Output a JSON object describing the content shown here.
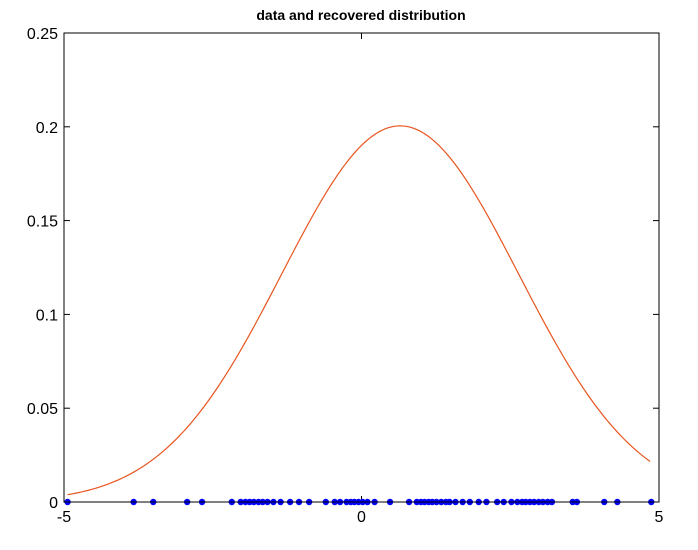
{
  "chart_data": {
    "type": "line",
    "title": "data and recovered distribution",
    "xlabel": "",
    "ylabel": "",
    "xlim": [
      -5,
      5
    ],
    "ylim": [
      0,
      0.25
    ],
    "x_ticks": [
      "-5",
      "0",
      "5"
    ],
    "y_ticks": [
      "0",
      "0.05",
      "0.1",
      "0.15",
      "0.2",
      "0.25"
    ],
    "grid": false,
    "legend": "none",
    "curve": {
      "color": "#e8551f",
      "x_range": [
        -4.94,
        4.85
      ],
      "mean": 0.65,
      "std": 1.99,
      "peak": 0.2005
    },
    "points": {
      "color": "#0000ff",
      "y": 0,
      "x": [
        -4.94,
        -3.83,
        -3.5,
        -2.93,
        -2.68,
        -2.18,
        -2.03,
        -1.95,
        -1.88,
        -1.81,
        -1.73,
        -1.66,
        -1.58,
        -1.48,
        -1.36,
        -1.2,
        -1.05,
        -0.88,
        -0.6,
        -0.45,
        -0.36,
        -0.25,
        -0.18,
        -0.12,
        -0.05,
        0.02,
        0.1,
        0.22,
        0.48,
        0.8,
        0.93,
        1.0,
        1.06,
        1.13,
        1.19,
        1.26,
        1.34,
        1.42,
        1.48,
        1.58,
        1.7,
        1.82,
        1.97,
        2.1,
        2.28,
        2.39,
        2.52,
        2.62,
        2.7,
        2.76,
        2.83,
        2.9,
        2.98,
        3.05,
        3.13,
        3.2,
        3.55,
        3.62,
        4.08,
        4.3,
        4.87
      ]
    }
  }
}
